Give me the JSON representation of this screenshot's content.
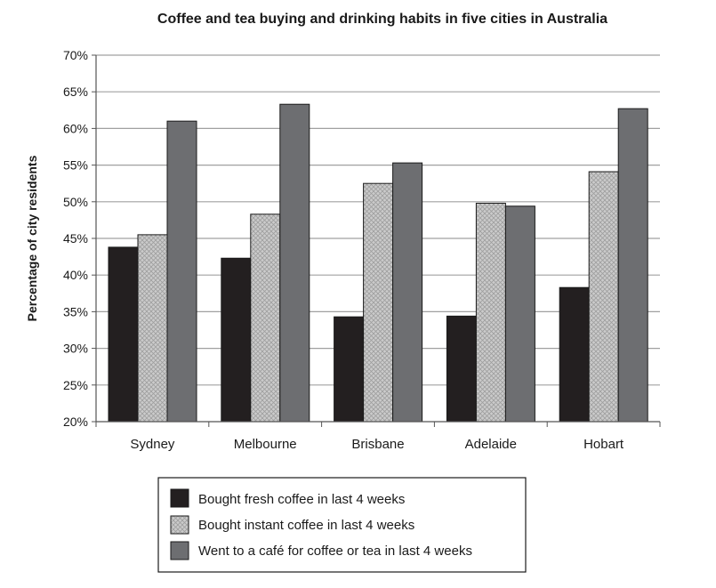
{
  "chart_data": {
    "type": "bar",
    "title": "Coffee and tea buying and drinking habits in five cities in Australia",
    "xlabel": "",
    "ylabel": "Percentage of city residents",
    "ylim": [
      20,
      70
    ],
    "ytick_step": 5,
    "ytick_labels": [
      "20%",
      "25%",
      "30%",
      "35%",
      "40%",
      "45%",
      "50%",
      "55%",
      "60%",
      "65%",
      "70%"
    ],
    "categories": [
      "Sydney",
      "Melbourne",
      "Brisbane",
      "Adelaide",
      "Hobart"
    ],
    "series": [
      {
        "name": "Bought fresh coffee in last 4 weeks",
        "values": [
          43.8,
          42.3,
          34.3,
          34.4,
          38.3
        ],
        "color": "#231f20",
        "pattern": "solid"
      },
      {
        "name": "Bought instant coffee in last 4 weeks",
        "values": [
          45.5,
          48.3,
          52.5,
          49.8,
          54.1
        ],
        "color": "#c8c8c8",
        "pattern": "crosshatch"
      },
      {
        "name": "Went to a café for coffee or tea in last 4 weeks",
        "values": [
          61.0,
          63.3,
          55.3,
          49.4,
          62.7
        ],
        "color": "#6d6e71",
        "pattern": "solid"
      }
    ],
    "grid": true,
    "legend_position": "bottom-center",
    "colors": {
      "grid": "#a0a0a0",
      "axis": "#555555",
      "bar_outline": "#1a1a1a"
    }
  }
}
